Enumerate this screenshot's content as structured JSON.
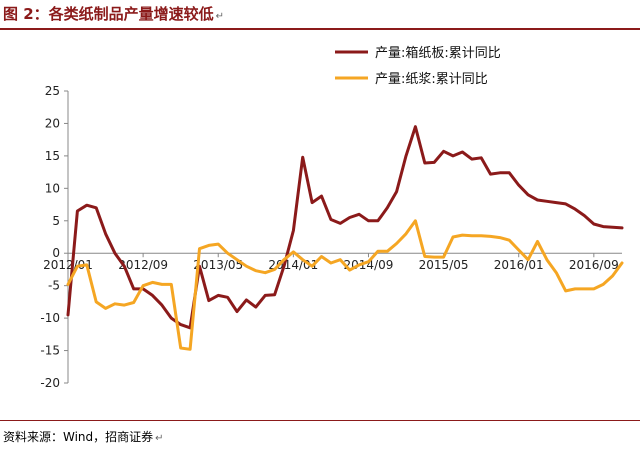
{
  "header": {
    "title": "图 2：各类纸制品产量增速较低",
    "para_mark": "↵"
  },
  "footer": {
    "source": "资料来源：Wind，招商证券"
  },
  "colors": {
    "series1": "#8b1a1a",
    "series2": "#f5a623",
    "axis": "#888888"
  },
  "chart_data": {
    "type": "line",
    "title": "",
    "xlabel": "",
    "ylabel": "",
    "ylim": [
      -20,
      25
    ],
    "y_ticks": [
      -20,
      -15,
      -10,
      -5,
      0,
      5,
      10,
      15,
      20,
      25
    ],
    "x_tick_labels": [
      "2012/01",
      "2012/09",
      "2013/05",
      "2014/01",
      "2014/09",
      "2015/05",
      "2016/01",
      "2016/09"
    ],
    "legend_position": "top-right",
    "grid": false,
    "series": [
      {
        "name": "产量:箱纸板:累计同比",
        "color": "#8b1a1a",
        "values": [
          -9.5,
          6.5,
          7.4,
          7.0,
          3.0,
          0.0,
          -2.0,
          -5.5,
          -5.5,
          -6.5,
          -8.0,
          -10.0,
          -11.0,
          -11.5,
          -2.0,
          -7.3,
          -6.5,
          -6.8,
          -9.0,
          -7.2,
          -8.3,
          -6.5,
          -6.4,
          -2.0,
          3.5,
          14.8,
          7.8,
          8.8,
          5.2,
          4.6,
          5.5,
          6.0,
          5.0,
          5.0,
          7.0,
          9.5,
          15.0,
          19.5,
          13.9,
          14.0,
          15.7,
          15.0,
          15.6,
          14.5,
          14.7,
          12.2,
          12.4,
          12.4,
          10.5,
          9.0,
          8.2,
          8.0,
          7.8,
          7.6,
          6.8,
          5.8,
          4.5,
          4.1,
          4.0,
          3.9
        ],
        "start": "2012/01"
      },
      {
        "name": "产量:纸浆:累计同比",
        "color": "#f5a623",
        "values": [
          -4.8,
          -2.0,
          -1.8,
          -7.5,
          -8.5,
          -7.8,
          -8.0,
          -7.6,
          -5.0,
          -4.5,
          -4.8,
          -4.8,
          -14.6,
          -14.8,
          0.7,
          1.2,
          1.4,
          0.0,
          -1.0,
          -2.0,
          -2.7,
          -3.0,
          -2.5,
          -1.0,
          0.2,
          -1.0,
          -2.0,
          -0.5,
          -1.5,
          -1.0,
          -2.6,
          -1.8,
          -1.3,
          0.3,
          0.3,
          1.5,
          3.0,
          5.0,
          -0.5,
          -0.6,
          -0.6,
          2.5,
          2.8,
          2.7,
          2.7,
          2.6,
          2.4,
          2.0,
          0.5,
          -1.0,
          1.8,
          -1.0,
          -3.0,
          -5.8,
          -5.5,
          -5.5,
          -5.5,
          -4.8,
          -3.5,
          -1.5
        ],
        "start": "2012/01"
      }
    ]
  }
}
